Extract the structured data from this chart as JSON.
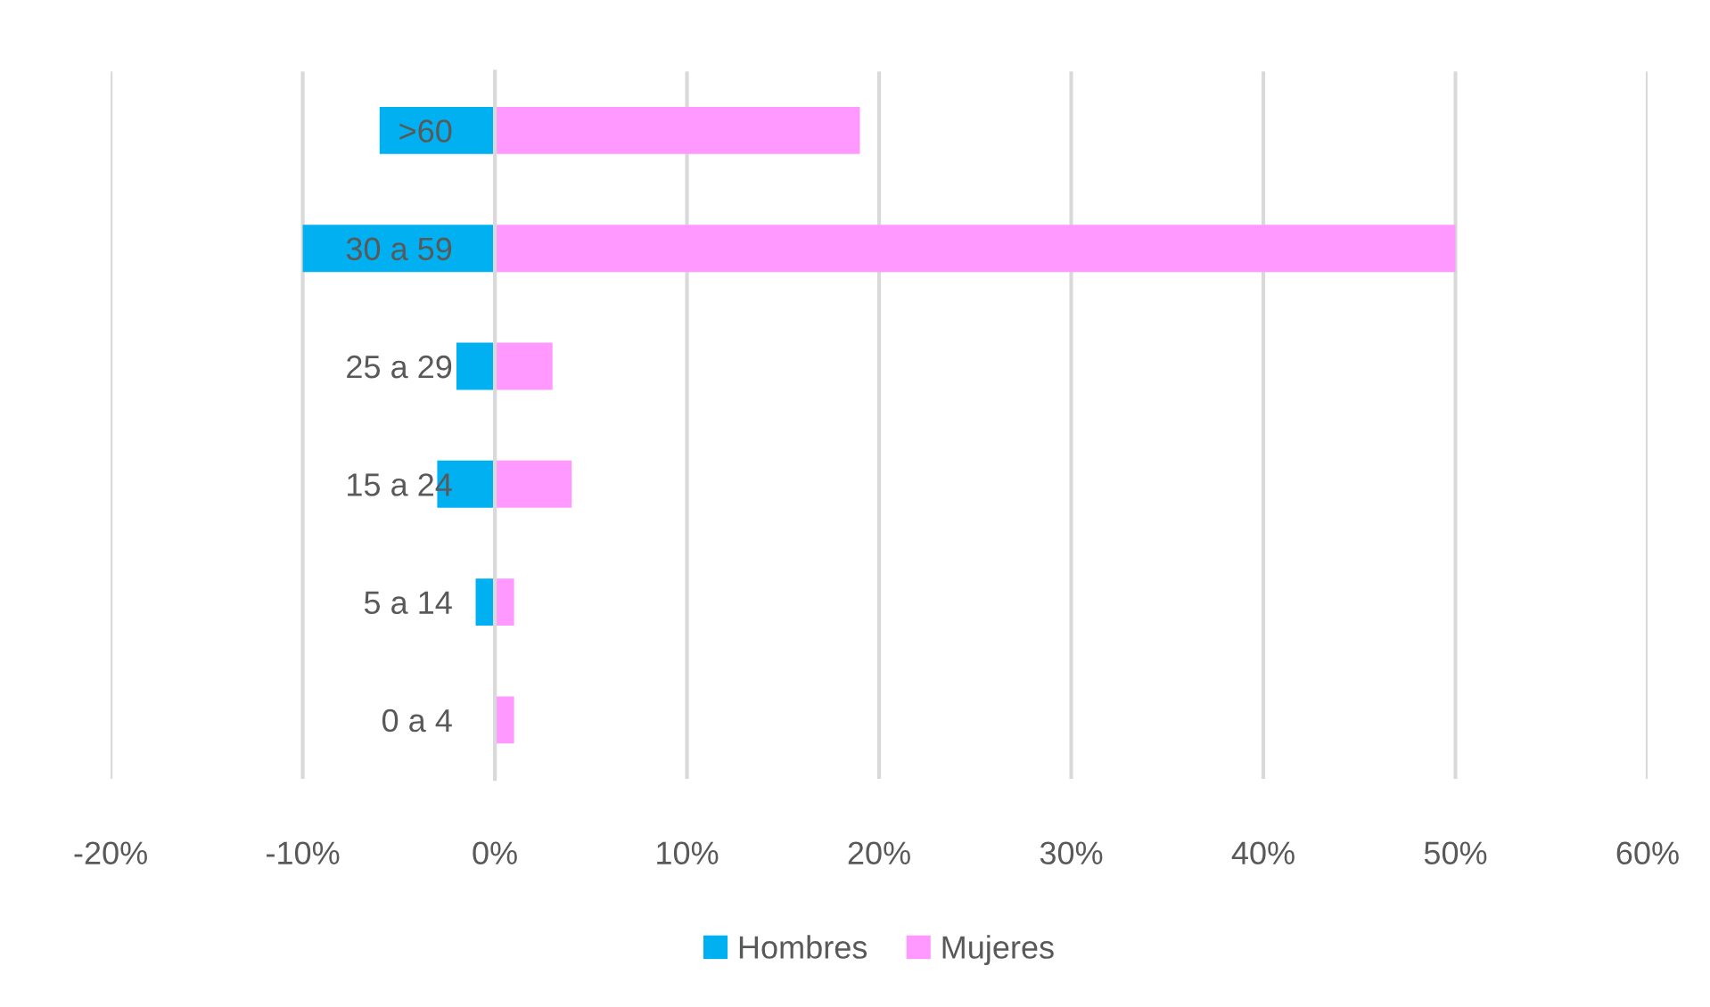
{
  "chart_data": {
    "type": "bar",
    "orientation": "horizontal",
    "stacked": true,
    "categories": [
      ">60",
      "30 a 59",
      "25 a 29",
      "15 a 24",
      "5 a 14",
      "0 a 4"
    ],
    "series": [
      {
        "name": "Hombres",
        "color": "#00b0f0",
        "values": [
          -6,
          -10,
          -2,
          -3,
          -1,
          0
        ]
      },
      {
        "name": "Mujeres",
        "color": "#ff99ff",
        "values": [
          19,
          50,
          3,
          4,
          1,
          1
        ]
      }
    ],
    "xlim": [
      -20,
      60
    ],
    "xticks": [
      {
        "value": -20,
        "label": "-20%"
      },
      {
        "value": -10,
        "label": "-10%"
      },
      {
        "value": 0,
        "label": "0%"
      },
      {
        "value": 10,
        "label": "10%"
      },
      {
        "value": 20,
        "label": "20%"
      },
      {
        "value": 30,
        "label": "30%"
      },
      {
        "value": 40,
        "label": "40%"
      },
      {
        "value": 50,
        "label": "50%"
      },
      {
        "value": 60,
        "label": "60%"
      }
    ],
    "grid": "x",
    "legend": "bottom"
  }
}
